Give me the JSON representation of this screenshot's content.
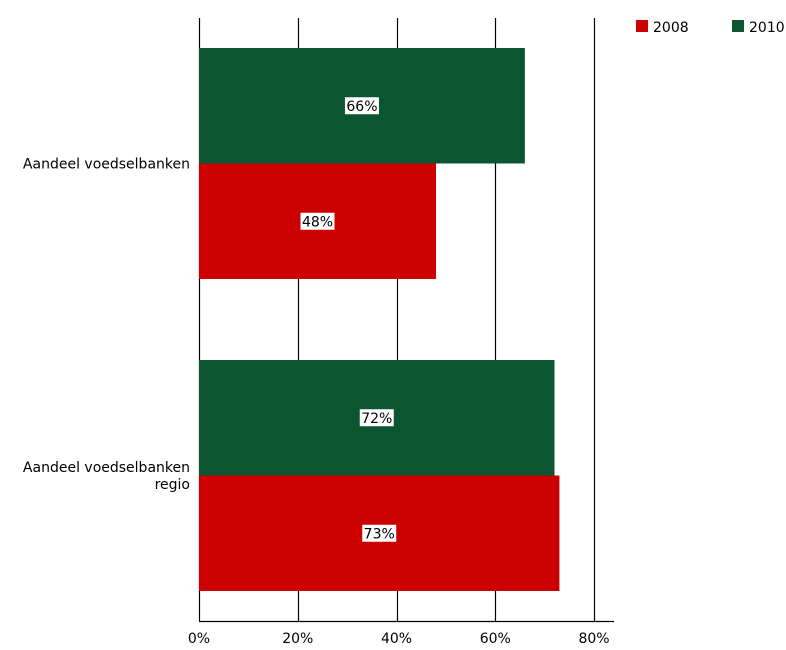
{
  "chart_data": {
    "type": "bar",
    "orientation": "horizontal",
    "categories": [
      "Aandeel voedselbanken",
      "Aandeel voedselbanken regio"
    ],
    "category_lines": [
      [
        "Aandeel voedselbanken"
      ],
      [
        "Aandeel voedselbanken",
        "regio"
      ]
    ],
    "series": [
      {
        "name": "2008",
        "color": "#cc0000",
        "values": [
          48,
          73
        ],
        "labels": [
          "48%",
          "73%"
        ]
      },
      {
        "name": "2010",
        "color": "#0b5630",
        "values": [
          66,
          72
        ],
        "labels": [
          "66%",
          "72%"
        ]
      }
    ],
    "series_draw_order": [
      "2010",
      "2008"
    ],
    "xlim": [
      0,
      80
    ],
    "xticks": [
      0,
      20,
      40,
      60,
      80
    ],
    "xtick_labels": [
      "0%",
      "20%",
      "40%",
      "60%",
      "80%"
    ],
    "grid": "vertical",
    "legend": "top-right"
  }
}
